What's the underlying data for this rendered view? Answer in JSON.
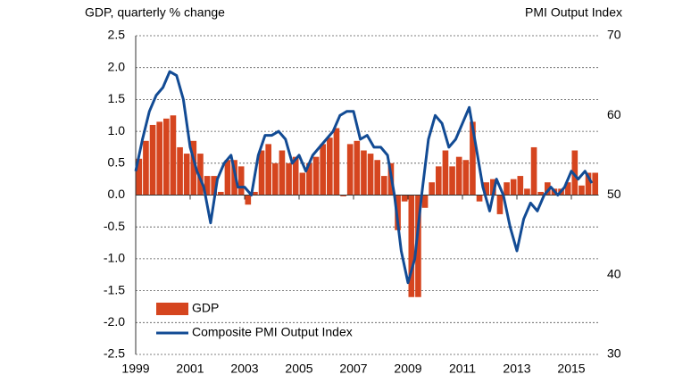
{
  "chart_data": {
    "type": "bar-line",
    "y_label": "GDP, quarterly % change",
    "y2_label": "PMI Output Index",
    "x": [
      1999,
      1999.25,
      1999.5,
      1999.75,
      2000,
      2000.25,
      2000.5,
      2000.75,
      2001,
      2001.25,
      2001.5,
      2001.75,
      2002,
      2002.25,
      2002.5,
      2002.75,
      2003,
      2003.25,
      2003.5,
      2003.75,
      2004,
      2004.25,
      2004.5,
      2004.75,
      2005,
      2005.25,
      2005.5,
      2005.75,
      2006,
      2006.25,
      2006.5,
      2006.75,
      2007,
      2007.25,
      2007.5,
      2007.75,
      2008,
      2008.25,
      2008.5,
      2008.75,
      2009,
      2009.25,
      2009.5,
      2009.75,
      2010,
      2010.25,
      2010.5,
      2010.75,
      2011,
      2011.25,
      2011.5,
      2011.75,
      2012,
      2012.25,
      2012.5,
      2012.75,
      2013,
      2013.25,
      2013.5,
      2013.75,
      2014,
      2014.25,
      2014.5,
      2014.75,
      2015,
      2015.25,
      2015.5,
      2015.75
    ],
    "series": [
      {
        "name": "GDP",
        "type": "bar",
        "color": "#d5451f",
        "values": [
          0.57,
          0.85,
          1.1,
          1.15,
          1.2,
          1.25,
          0.75,
          0.65,
          0.85,
          0.65,
          0.3,
          0.3,
          0.05,
          0.55,
          0.55,
          0.45,
          -0.15,
          0.05,
          0.7,
          0.8,
          0.5,
          0.7,
          0.5,
          0.6,
          0.35,
          0.5,
          0.6,
          0.8,
          0.9,
          1.05,
          -0.02,
          0.8,
          0.85,
          0.7,
          0.65,
          0.55,
          0.3,
          0.5,
          -0.55,
          -0.1,
          -1.6,
          -1.6,
          -0.2,
          0.2,
          0.45,
          0.7,
          0.45,
          0.6,
          0.55,
          1.15,
          -0.1,
          0.2,
          0.25,
          -0.3,
          0.2,
          0.25,
          0.3,
          0.1,
          0.75,
          0.05,
          0.2,
          0.1,
          0.1,
          0.2,
          0.7,
          0.15,
          0.35,
          0.35
        ]
      },
      {
        "name": "Composite PMI Output Index",
        "type": "line",
        "axis": "y2",
        "color": "#124b94",
        "values": [
          53,
          57,
          60.5,
          62.5,
          63.5,
          65.5,
          65,
          62,
          56,
          53,
          51,
          46.5,
          52,
          54,
          55,
          51,
          51,
          50,
          55,
          57.5,
          57.5,
          58,
          57,
          54,
          55,
          53,
          55,
          56,
          57,
          58,
          60,
          60.5,
          60.5,
          57,
          57.5,
          56,
          56,
          55,
          50,
          43,
          39,
          42,
          50,
          57,
          60,
          59,
          56,
          57,
          59,
          61,
          56,
          51,
          48,
          52,
          50,
          46,
          43,
          47,
          49,
          48,
          50,
          51,
          50,
          51,
          53,
          52,
          53,
          51.5
        ]
      }
    ],
    "xlim": [
      1999,
      2016
    ],
    "xticks": [
      1999,
      2001,
      2003,
      2005,
      2007,
      2009,
      2011,
      2013,
      2015
    ],
    "ylim": [
      -2.5,
      2.5
    ],
    "yticks": [
      2.5,
      {
        "value": 2,
        "label": "2.0"
      },
      1.5,
      {
        "value": 1,
        "label": "1.0"
      },
      0.5,
      {
        "value": 0,
        "label": "0.0"
      },
      -0.5,
      {
        "value": -1,
        "label": "-1.0"
      },
      -1.5,
      {
        "value": -2,
        "label": "-2.0"
      },
      -2.5
    ],
    "y2lim": [
      30,
      70
    ],
    "y2ticks": [
      70,
      60,
      50,
      40,
      30
    ],
    "grid": true,
    "legend": "lower left"
  }
}
